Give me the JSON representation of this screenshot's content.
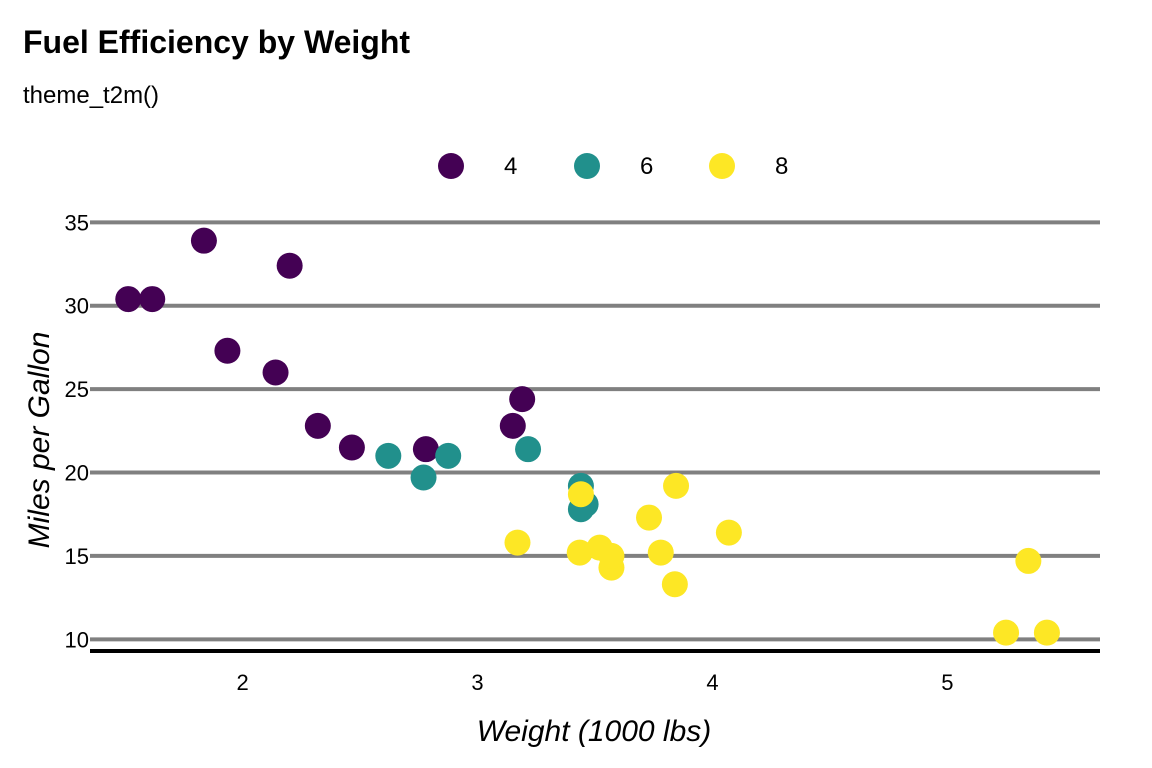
{
  "chart_data": {
    "type": "scatter",
    "title": "Fuel Efficiency by Weight",
    "subtitle": "theme_t2m()",
    "xlabel": "Weight (1000 lbs)",
    "ylabel": "Miles per Gallon",
    "xlim": [
      1.35,
      5.65
    ],
    "ylim": [
      9.3,
      35.5
    ],
    "x_ticks": [
      2,
      3,
      4,
      5
    ],
    "y_ticks": [
      10,
      15,
      20,
      25,
      30,
      35
    ],
    "grid": "horizontal",
    "legend_position": "top",
    "series": [
      {
        "name": "4",
        "color": "#440154",
        "points": [
          [
            2.32,
            22.8
          ],
          [
            3.19,
            24.4
          ],
          [
            3.15,
            22.8
          ],
          [
            2.2,
            32.4
          ],
          [
            1.615,
            30.4
          ],
          [
            1.835,
            33.9
          ],
          [
            2.465,
            21.5
          ],
          [
            1.935,
            27.3
          ],
          [
            2.14,
            26.0
          ],
          [
            1.513,
            30.4
          ],
          [
            2.78,
            21.4
          ]
        ]
      },
      {
        "name": "6",
        "color": "#21908C",
        "points": [
          [
            2.62,
            21.0
          ],
          [
            2.875,
            21.0
          ],
          [
            3.215,
            21.4
          ],
          [
            3.46,
            18.1
          ],
          [
            3.44,
            19.2
          ],
          [
            3.44,
            17.8
          ],
          [
            2.77,
            19.7
          ]
        ]
      },
      {
        "name": "8",
        "color": "#FDE725",
        "points": [
          [
            3.44,
            18.7
          ],
          [
            3.57,
            14.3
          ],
          [
            4.07,
            16.4
          ],
          [
            3.73,
            17.3
          ],
          [
            3.78,
            15.2
          ],
          [
            5.25,
            10.4
          ],
          [
            5.424,
            10.4
          ],
          [
            5.345,
            14.7
          ],
          [
            3.52,
            15.5
          ],
          [
            3.435,
            15.2
          ],
          [
            3.84,
            13.3
          ],
          [
            3.845,
            19.2
          ],
          [
            3.17,
            15.8
          ],
          [
            3.57,
            15.0
          ]
        ]
      }
    ]
  }
}
